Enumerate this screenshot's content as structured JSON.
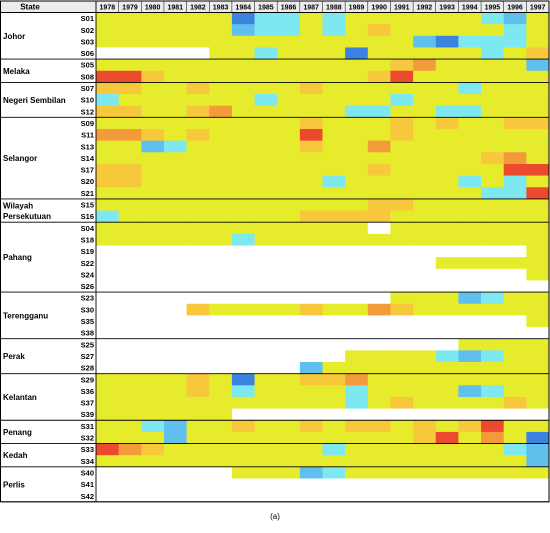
{
  "caption": "(a)",
  "chart_data": {
    "type": "heatmap",
    "header_label": "State",
    "years": [
      "1978",
      "1979",
      "1980",
      "1981",
      "1982",
      "1983",
      "1984",
      "1985",
      "1986",
      "1987",
      "1988",
      "1989",
      "1990",
      "1991",
      "1992",
      "1993",
      "1994",
      "1995",
      "1996",
      "1997"
    ],
    "legend": {
      "W": "no data (white)",
      "B": "dark blue",
      "L": "light blue",
      "C": "cyan",
      "Y": "yellow",
      "G": "yellow-orange",
      "O": "orange",
      "R": "red"
    },
    "colors": {
      "W": "#ffffff",
      "B": "#3a84e0",
      "L": "#5fc0ee",
      "C": "#7ee8f0",
      "Y": "#e6ec2c",
      "G": "#f8c83c",
      "O": "#f39a3a",
      "R": "#ec4a2e"
    },
    "states": [
      {
        "name": "Johor",
        "stations": [
          {
            "id": "S01",
            "cells": "YYYYYYBCCYCYYYYYYCLY"
          },
          {
            "id": "S02",
            "cells": "YYYYYYLCCYCYGYYYYYCY"
          },
          {
            "id": "S03",
            "cells": "YYYYYYYYYYYYYYLBCCCY"
          },
          {
            "id": "S06",
            "cells": "WWWWWYYCYYYBYYYYYCYG"
          }
        ]
      },
      {
        "name": "Melaka",
        "stations": [
          {
            "id": "S05",
            "cells": "YYYYYYYYYYYYYGOYYYYL"
          },
          {
            "id": "S08",
            "cells": "RRGYYYYYYYYYGRYYYYYY"
          }
        ]
      },
      {
        "name": "Negeri Sembilan",
        "stations": [
          {
            "id": "S07",
            "cells": "GGYYGYYYYGYYYYYYCYYY"
          },
          {
            "id": "S10",
            "cells": "CYYYYYYCYYYYYCYYYYYY"
          },
          {
            "id": "S12",
            "cells": "GGYYGOYYYYYCCYYCCYYY"
          }
        ]
      },
      {
        "name": "Selangor",
        "stations": [
          {
            "id": "S09",
            "cells": "YYYYYYYYYGYYYGYGYYGG"
          },
          {
            "id": "S11",
            "cells": "OOGYGYYYYRYYYGYYYYYY"
          },
          {
            "id": "S13",
            "cells": "YYLCYYYYYGYYOYYYYYYY"
          },
          {
            "id": "S14",
            "cells": "YYYYYYYYYYYYYYYYYGOY"
          },
          {
            "id": "S17",
            "cells": "GGYYYYYYYYYYGYYYYYRR"
          },
          {
            "id": "S20",
            "cells": "GGYYYYYYYYCYYYYYCYCY"
          },
          {
            "id": "S21",
            "cells": "YYYYYYYYYYYYYYYYYCCR"
          }
        ]
      },
      {
        "name": "Wilayah Persekutuan",
        "stations": [
          {
            "id": "S15",
            "cells": "YYYYYYYYYYYYGGYYYYYY"
          },
          {
            "id": "S16",
            "cells": "CYYYYYYYYGGGGYYYYYYY"
          }
        ]
      },
      {
        "name": "Pahang",
        "stations": [
          {
            "id": "S04",
            "cells": "YYYYYYYYYYYYWYYYYYYY"
          },
          {
            "id": "S18",
            "cells": "YYYYYYCYYYYYYYYYYYYY"
          },
          {
            "id": "S19",
            "cells": "WWWWWWWWWWWWWWWWWWWY"
          },
          {
            "id": "S22",
            "cells": "WWWWWWWWWWWWWWWYYYYY"
          },
          {
            "id": "S24",
            "cells": "WWWWWWWWWWWWWWWWWWWY"
          },
          {
            "id": "S26",
            "cells": "WWWWWWWWWWWWWWWWWWWW"
          }
        ]
      },
      {
        "name": "Terengganu",
        "stations": [
          {
            "id": "S23",
            "cells": "WWWWWWWWWWWWWYYYLCYY"
          },
          {
            "id": "S30",
            "cells": "WWWWGYYYYGYYOGYYYYYY"
          },
          {
            "id": "S35",
            "cells": "WWWWWWWWWWWWWWWWWWWY"
          },
          {
            "id": "S38",
            "cells": "WWWWWWWWWWWWWWWWWWWW"
          }
        ]
      },
      {
        "name": "Perak",
        "stations": [
          {
            "id": "S25",
            "cells": "WWWWWWWWWWWWWWWWYYYY"
          },
          {
            "id": "S27",
            "cells": "WWWWWWWWWWWYYYYCLCYY"
          },
          {
            "id": "S28",
            "cells": "WWWWWWWWWLYYYYYYYYYY"
          }
        ]
      },
      {
        "name": "Kelantan",
        "stations": [
          {
            "id": "S29",
            "cells": "YYYYGYBYYGGOYYYYYYYY"
          },
          {
            "id": "S36",
            "cells": "YYYYGYCYYYYCYYYYLCYY"
          },
          {
            "id": "S37",
            "cells": "YYYYYYYYYYYCYGYYYYGY"
          },
          {
            "id": "S39",
            "cells": "YYYYYYWWWWWWWWWWWWWW"
          }
        ]
      },
      {
        "name": "Penang",
        "stations": [
          {
            "id": "S31",
            "cells": "YYCLYYGYYGYGGYGYGRYY"
          },
          {
            "id": "S32",
            "cells": "YYYLYYYYYYYYYYGRYOYB"
          }
        ]
      },
      {
        "name": "Kedah",
        "stations": [
          {
            "id": "S33",
            "cells": "ROGYYYYYYYCYYYYYYYCL"
          },
          {
            "id": "S34",
            "cells": "YYYYYYYYYYYYYYYYYYYL"
          }
        ]
      },
      {
        "name": "Perlis",
        "stations": [
          {
            "id": "S40",
            "cells": "WWWWWWYYYLCYYYYYYYYY"
          },
          {
            "id": "S41",
            "cells": "WWWWWWWWWWWWWWWWWWWW"
          },
          {
            "id": "S42",
            "cells": "WWWWWWWWWWWWWWWWWWWW"
          }
        ]
      }
    ]
  }
}
